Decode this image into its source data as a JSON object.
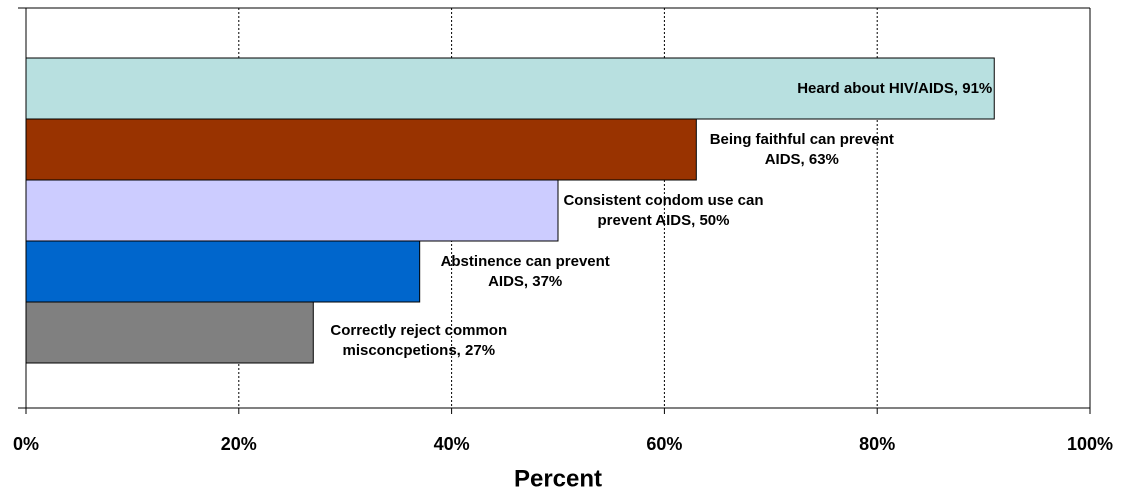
{
  "chart_data": {
    "type": "hbar",
    "values": [
      91,
      63,
      50,
      37,
      27
    ],
    "value_labels": [
      "Heard about HIV/AIDS, 91%",
      "Being faithful can prevent AIDS, 63%",
      "Consistent condom use can prevent AIDS, 50%",
      "Abstinence can prevent AIDS, 37%",
      "Correctly reject common misconcpetions, 27%"
    ],
    "colors": [
      "#b8e0e0",
      "#993300",
      "#ccccff",
      "#0066cc",
      "#808080"
    ],
    "x_label": "Percent",
    "xlim": [
      0,
      100
    ],
    "xticks": [
      {
        "value": 0,
        "label": "0%"
      },
      {
        "value": 20,
        "label": "20%"
      },
      {
        "value": 40,
        "label": "40%"
      },
      {
        "value": 60,
        "label": "60%"
      },
      {
        "value": 80,
        "label": "80%"
      },
      {
        "value": 100,
        "label": "100%"
      }
    ],
    "grid": true
  }
}
